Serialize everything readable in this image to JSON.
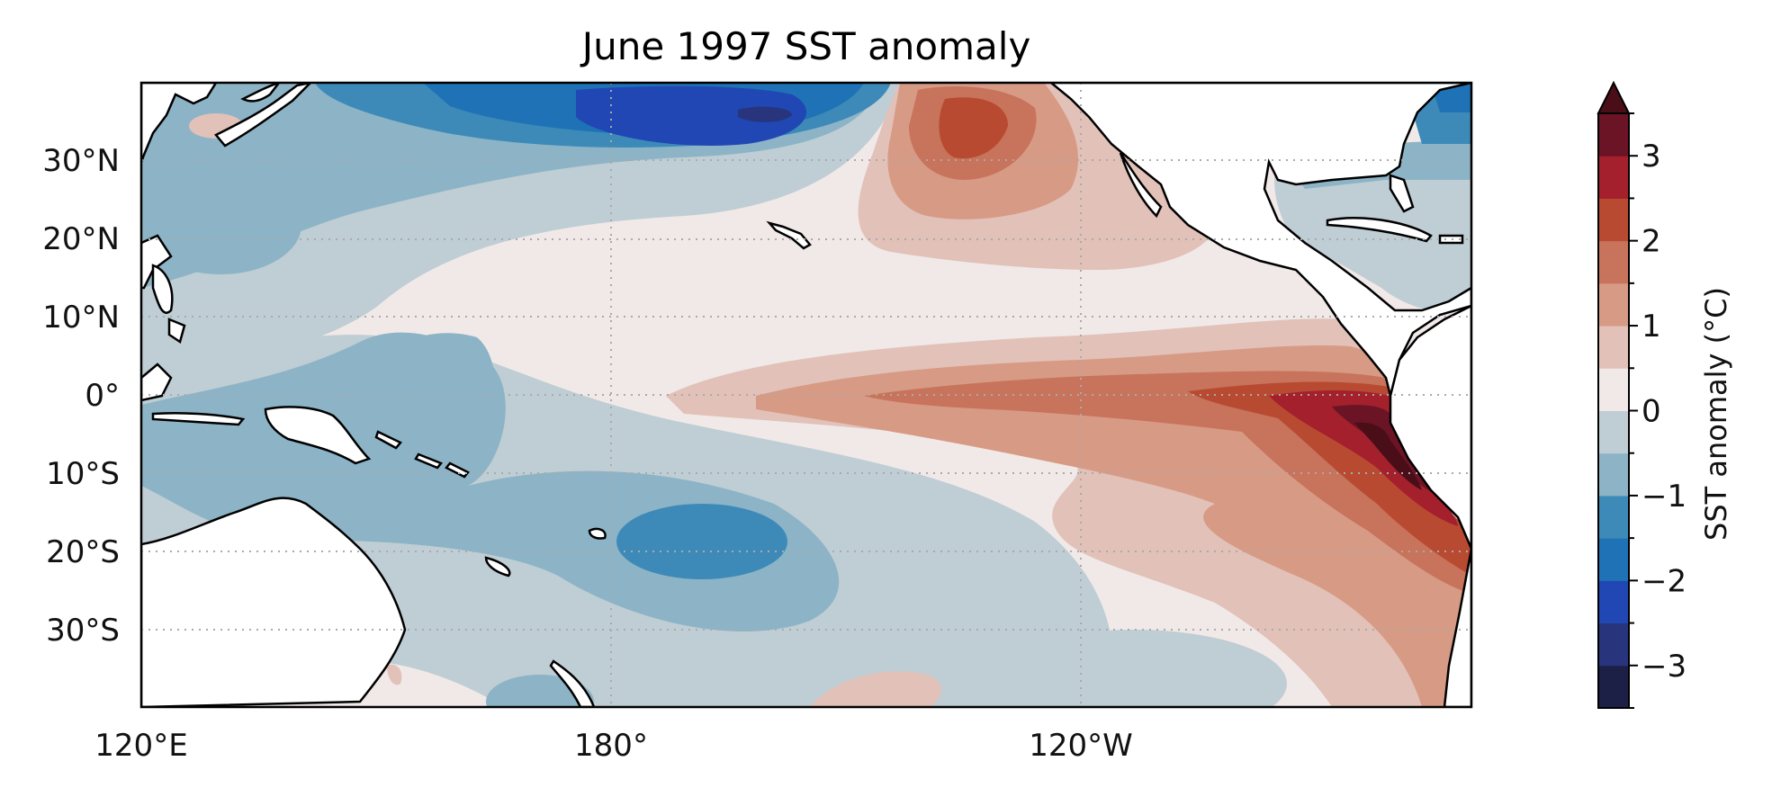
{
  "title": "June 1997 SST anomaly",
  "map": {
    "lon_range": [
      "120°E",
      "70°W"
    ],
    "lat_range": [
      "40°S",
      "40°N"
    ],
    "lat_ticks": [
      "30°N",
      "20°N",
      "10°N",
      "0°",
      "10°S",
      "20°S",
      "30°S"
    ],
    "lon_ticks": [
      "120°E",
      "180°",
      "120°W"
    ],
    "gridlines": true,
    "gridline_style": "dotted gray",
    "land_color": "#ffffff",
    "coastline_color": "#000000"
  },
  "colorbar": {
    "label": "SST anomaly (°C)",
    "tick_labels": [
      "3",
      "2",
      "1",
      "0",
      "−1",
      "−2",
      "−3"
    ],
    "range": [
      -3.5,
      3.5
    ],
    "extend": "max",
    "levels": [
      -3.5,
      -3.0,
      -2.5,
      -2.0,
      -1.5,
      -1.0,
      -0.5,
      0.0,
      0.5,
      1.0,
      1.5,
      2.0,
      2.5,
      3.0,
      3.5
    ],
    "colors": [
      "#1c1f46",
      "#28357c",
      "#2047b4",
      "#1f72b6",
      "#3d8ab8",
      "#8cb4c6",
      "#bfcdd4",
      "#f0e9e8",
      "#e2c1b8",
      "#d79a85",
      "#c8735b",
      "#b84a32",
      "#a3202c",
      "#6b1425"
    ],
    "extend_color": "#4a0e18",
    "position": "right"
  }
}
